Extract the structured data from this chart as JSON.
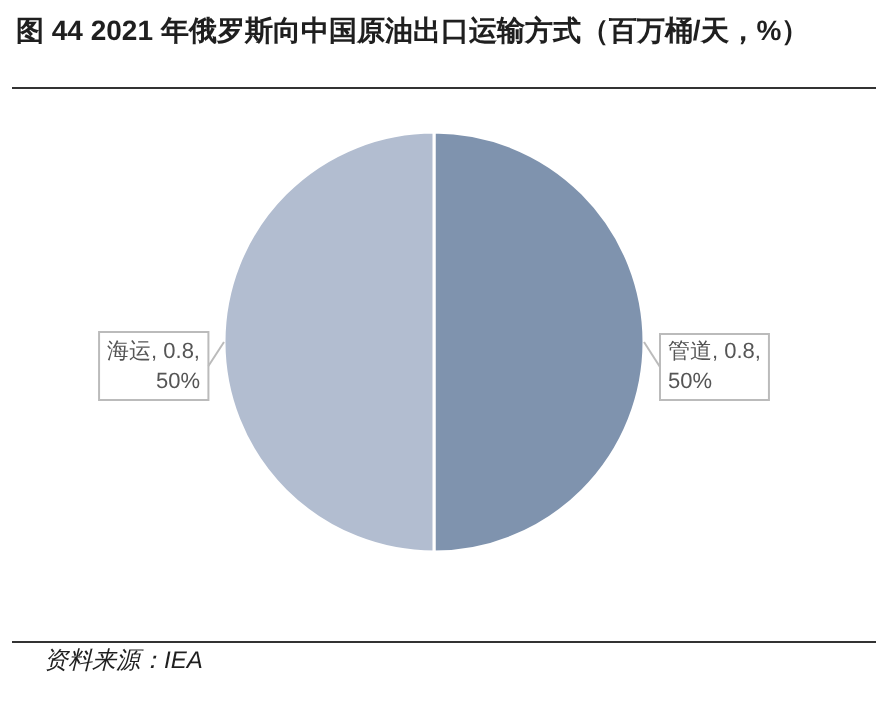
{
  "chart_data": {
    "type": "pie",
    "title": "图 44  2021 年俄罗斯向中国原油出口运输方式（百万桶/天，%）",
    "categories": [
      "管道",
      "海运"
    ],
    "values": [
      0.8,
      0.8
    ],
    "colors": [
      "#7f93ae",
      "#b2bdd0"
    ],
    "value_labels": [
      ", 0.8, 50%",
      ", 0.8, 50%"
    ],
    "annotations": [
      "资料来源：IEA"
    ]
  }
}
